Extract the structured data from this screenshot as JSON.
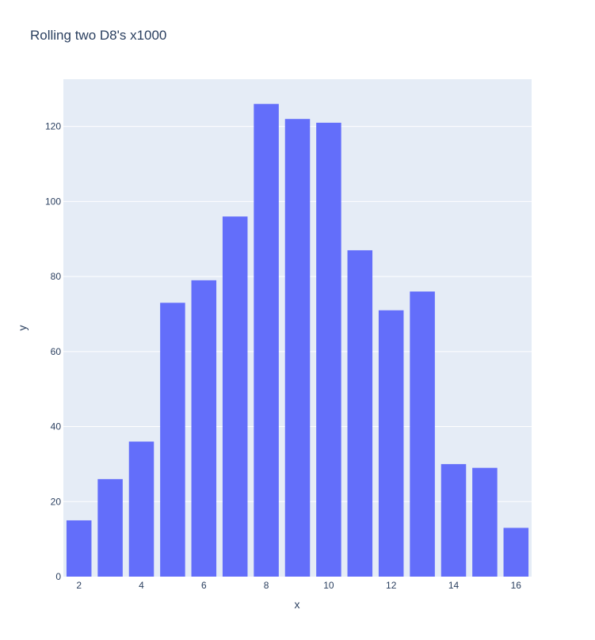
{
  "chart_data": {
    "type": "bar",
    "title": "Rolling two D8's x1000",
    "xlabel": "x",
    "ylabel": "y",
    "x": [
      2,
      3,
      4,
      5,
      6,
      7,
      8,
      9,
      10,
      11,
      12,
      13,
      14,
      15,
      16
    ],
    "values": [
      15,
      26,
      36,
      73,
      79,
      96,
      126,
      122,
      121,
      87,
      71,
      76,
      30,
      29,
      13
    ],
    "xlim": [
      1.5,
      16.5
    ],
    "ylim": [
      0,
      132.6
    ],
    "xticks": [
      2,
      4,
      6,
      8,
      10,
      12,
      14,
      16
    ],
    "yticks": [
      0,
      20,
      40,
      60,
      80,
      100,
      120
    ],
    "grid": true,
    "colors": {
      "bar": "#636efa",
      "plot_background": "#e5ecf6",
      "grid": "#ffffff",
      "text": "#2a3f5f"
    }
  }
}
